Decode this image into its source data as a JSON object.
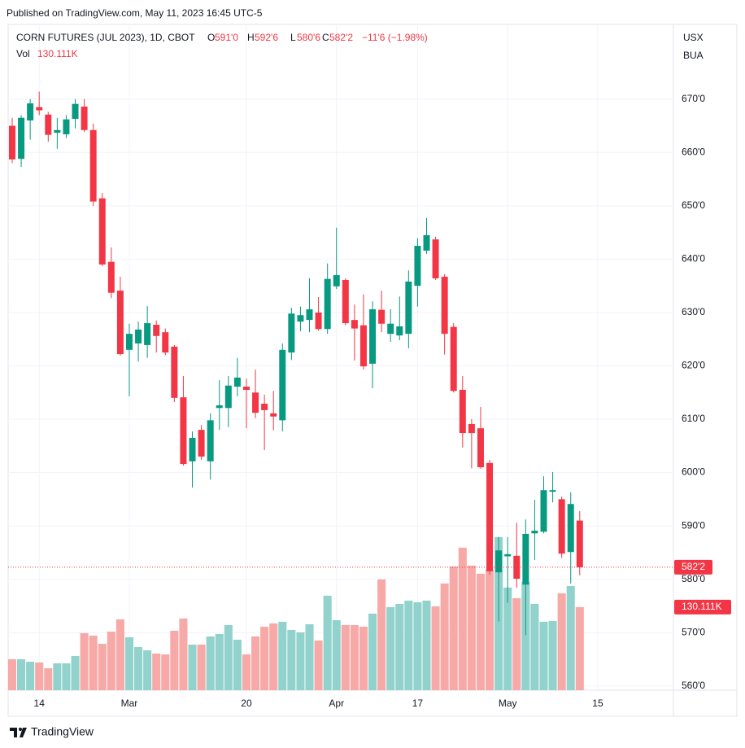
{
  "header": {
    "published": "Published on TradingView.com, May 11, 2023 16:45 UTC-5"
  },
  "footer": {
    "brand": "TradingView"
  },
  "legend": {
    "o": "O",
    "open": "591'0",
    "h": "H",
    "high": "592'6",
    "l": "L",
    "low": "580'6",
    "c": "C",
    "close": "582'2",
    "change": "−11'6 (−1.98%)",
    "vol": "Vol",
    "volume": "130.111K"
  },
  "chart_data": {
    "type": "candlestick",
    "title": "CORN FUTURES (JUL 2023), 1D, CBOT",
    "currency": "USX",
    "unit": "BUA",
    "up_color": "#089981",
    "down_color": "#f23645",
    "volume_up_color": "#92d2cc",
    "volume_down_color": "#f7a9a7",
    "grid": true,
    "open": [
      665.0,
      658.8,
      666.0,
      668.5,
      667.1,
      663.7,
      663.4,
      666.3,
      668.6,
      664.2,
      651.4,
      639.5,
      634.1,
      623.0,
      624.2,
      623.9,
      627.7,
      626.3,
      623.6,
      614.1,
      602.1,
      608.0,
      602.1,
      612.1,
      612.1,
      616.1,
      616.1,
      615.0,
      612.9,
      611.1,
      609.8,
      622.5,
      628.3,
      628.6,
      630.0,
      626.9,
      634.9,
      636.1,
      628.6,
      627.6,
      620.4,
      630.5,
      626.0,
      625.7,
      626.0,
      635.0,
      641.6,
      643.7,
      636.7,
      627.3,
      615.5,
      609.1,
      608.3,
      601.8,
      581.3,
      584.3,
      584.4,
      579.0,
      588.6,
      588.9,
      596.4,
      595.0,
      585.1,
      591.0
    ],
    "high": [
      666.5,
      667.0,
      670.0,
      671.4,
      667.6,
      666.5,
      667.0,
      670.0,
      670.0,
      665.4,
      652.4,
      642.2,
      636.7,
      627.9,
      628.3,
      631.2,
      628.5,
      627.0,
      623.9,
      618.1,
      607.7,
      608.9,
      611.1,
      617.3,
      618.1,
      621.5,
      617.6,
      619.3,
      614.6,
      615.3,
      624.2,
      630.9,
      631.1,
      636.4,
      632.9,
      639.2,
      645.9,
      636.4,
      631.5,
      633.4,
      632.1,
      634.1,
      630.6,
      633.0,
      637.9,
      643.9,
      647.7,
      644.2,
      637.2,
      628.0,
      618.1,
      610.0,
      612.3,
      602.4,
      587.9,
      587.9,
      590.6,
      591.2,
      594.9,
      599.3,
      600.1,
      595.5,
      596.3,
      592.75
    ],
    "low": [
      658.0,
      657.3,
      662.4,
      667.0,
      662.0,
      660.7,
      662.7,
      664.5,
      663.8,
      650.0,
      638.7,
      632.7,
      621.9,
      614.3,
      620.8,
      621.5,
      622.5,
      622.0,
      613.2,
      601.3,
      597.2,
      602.4,
      598.7,
      608.0,
      608.5,
      614.3,
      608.3,
      610.2,
      604.2,
      607.9,
      607.7,
      621.1,
      626.5,
      626.3,
      626.6,
      626.0,
      634.4,
      627.6,
      621.0,
      619.3,
      615.8,
      626.3,
      624.5,
      624.8,
      623.3,
      631.1,
      641.0,
      636.1,
      622.1,
      615.0,
      604.7,
      600.8,
      600.7,
      580.8,
      572.1,
      575.6,
      578.4,
      569.5,
      583.6,
      588.6,
      594.4,
      584.0,
      579.2,
      580.75
    ],
    "close": [
      658.7,
      666.5,
      669.2,
      667.9,
      663.3,
      664.2,
      666.2,
      669.1,
      664.2,
      650.8,
      639.0,
      633.7,
      622.2,
      626.0,
      626.8,
      628.0,
      625.6,
      622.5,
      614.0,
      601.6,
      606.5,
      603.0,
      609.8,
      612.6,
      616.3,
      617.8,
      615.5,
      611.2,
      611.7,
      610.5,
      623.0,
      629.8,
      629.5,
      630.6,
      626.9,
      636.3,
      637.0,
      628.0,
      627.0,
      619.9,
      630.6,
      627.9,
      627.9,
      627.4,
      635.8,
      642.5,
      644.5,
      636.4,
      626.0,
      615.3,
      607.4,
      607.4,
      601.0,
      581.5,
      585.4,
      584.7,
      580.1,
      588.5,
      589.1,
      596.7,
      596.7,
      584.8,
      594.1,
      582.25
    ],
    "volume": [
      48500,
      48500,
      44600,
      43400,
      34400,
      42100,
      42100,
      53600,
      89300,
      85500,
      72700,
      91800,
      111000,
      82900,
      67600,
      62500,
      57400,
      56100,
      93100,
      112300,
      71400,
      71400,
      84200,
      88000,
      102000,
      79100,
      56100,
      84200,
      99500,
      104600,
      107200,
      94400,
      90600,
      103300,
      77800,
      148000,
      109700,
      102000,
      102000,
      99500,
      119900,
      173500,
      130100,
      135200,
      140300,
      137800,
      140300,
      131400,
      167100,
      193900,
      223200,
      195200,
      182400,
      188800,
      239800,
      160700,
      144100,
      169700,
      135200,
      107200,
      108400,
      151800,
      163300,
      130111
    ],
    "last_close_label": "582'2",
    "last_volume_label": "130.111K",
    "xlim": [
      -0.45,
      73.4
    ],
    "xticks": [
      {
        "value": 3,
        "label": "14"
      },
      {
        "value": 13,
        "label": "Mar"
      },
      {
        "value": 26,
        "label": "20"
      },
      {
        "value": 36,
        "label": "Apr"
      },
      {
        "value": 45,
        "label": "17"
      },
      {
        "value": 55,
        "label": "May"
      },
      {
        "value": 65,
        "label": "15"
      }
    ],
    "ylim": [
      559.2,
      684.0
    ],
    "yticks": [
      {
        "value": 560,
        "label": "560'0"
      },
      {
        "value": 570,
        "label": "570'0"
      },
      {
        "value": 580,
        "label": "580'0"
      },
      {
        "value": 590,
        "label": "590'0"
      },
      {
        "value": 600,
        "label": "600'0"
      },
      {
        "value": 610,
        "label": "610'0"
      },
      {
        "value": 620,
        "label": "620'0"
      },
      {
        "value": 630,
        "label": "630'0"
      },
      {
        "value": 640,
        "label": "640'0"
      },
      {
        "value": 650,
        "label": "650'0"
      },
      {
        "value": 660,
        "label": "660'0"
      },
      {
        "value": 670,
        "label": "670'0"
      }
    ]
  }
}
